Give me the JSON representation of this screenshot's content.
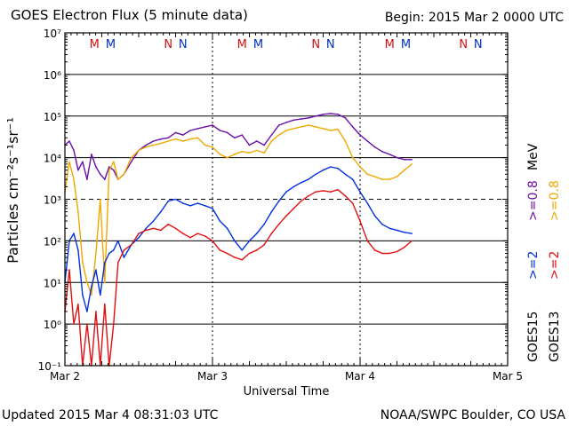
{
  "header": {
    "title": "GOES Electron Flux (5 minute data)",
    "begin": "Begin: 2015 Mar 2 0000 UTC"
  },
  "footer": {
    "updated": "Updated 2015 Mar  4 08:31:03 UTC",
    "credit": "NOAA/SWPC Boulder, CO USA"
  },
  "colors": {
    "goes13_08": "#f0a800",
    "goes15_08": "#6a0fa8",
    "goes15_2": "#0030e0",
    "goes13_2": "#e01010",
    "M": "#d01010",
    "N": "#d01010",
    "M_blue": "#0030c0"
  },
  "chart_data": {
    "type": "line",
    "xlabel": "Universal Time",
    "ylabel": "Particles cm⁻²s⁻¹sr⁻¹",
    "x_ticks": [
      "Mar 2",
      "Mar 3",
      "Mar 4",
      "Mar 5"
    ],
    "y_ticks": [
      "10⁻¹",
      "10⁰",
      "10¹",
      "10²",
      "10³",
      "10⁴",
      "10⁵",
      "10⁶",
      "10⁷"
    ],
    "y_scale": "log",
    "ylim": [
      0.1,
      10000000
    ],
    "xlim_days": [
      0,
      3
    ],
    "dashed_threshold": 1000,
    "legend": {
      "sat_left": "GOES15",
      "sat_right": "GOES13",
      "e2_left": ">=2",
      "e2_right": ">=2",
      "e08_left": ">=0.8",
      "e08_right": ">=0.8",
      "unit": "MeV"
    },
    "markers": [
      {
        "label": "M",
        "day": 0.2,
        "color": "red"
      },
      {
        "label": "M",
        "day": 0.31,
        "color": "blue"
      },
      {
        "label": "N",
        "day": 0.7,
        "color": "red"
      },
      {
        "label": "N",
        "day": 0.8,
        "color": "blue"
      },
      {
        "label": "M",
        "day": 1.2,
        "color": "red"
      },
      {
        "label": "M",
        "day": 1.31,
        "color": "blue"
      },
      {
        "label": "N",
        "day": 1.7,
        "color": "red"
      },
      {
        "label": "N",
        "day": 1.8,
        "color": "blue"
      },
      {
        "label": "M",
        "day": 2.2,
        "color": "red"
      },
      {
        "label": "M",
        "day": 2.31,
        "color": "blue"
      },
      {
        "label": "N",
        "day": 2.7,
        "color": "red"
      },
      {
        "label": "N",
        "day": 2.8,
        "color": "blue"
      }
    ],
    "series": [
      {
        "name": "GOES15 >=0.8 MeV",
        "color_key": "goes15_08",
        "x": [
          0,
          0.03,
          0.06,
          0.09,
          0.12,
          0.15,
          0.18,
          0.21,
          0.24,
          0.27,
          0.3,
          0.33,
          0.36,
          0.4,
          0.45,
          0.5,
          0.55,
          0.6,
          0.65,
          0.7,
          0.75,
          0.8,
          0.85,
          0.9,
          0.95,
          1.0,
          1.05,
          1.1,
          1.15,
          1.2,
          1.25,
          1.3,
          1.35,
          1.4,
          1.45,
          1.5,
          1.55,
          1.6,
          1.65,
          1.7,
          1.75,
          1.8,
          1.85,
          1.9,
          1.95,
          2.0,
          2.05,
          2.1,
          2.15,
          2.2,
          2.25,
          2.3,
          2.35
        ],
        "y": [
          20000,
          25000,
          15000,
          5000,
          8000,
          3000,
          12000,
          6000,
          4000,
          3000,
          6000,
          5000,
          3000,
          4000,
          8000,
          15000,
          20000,
          25000,
          28000,
          30000,
          40000,
          35000,
          45000,
          50000,
          55000,
          60000,
          45000,
          40000,
          30000,
          35000,
          20000,
          25000,
          20000,
          35000,
          60000,
          70000,
          80000,
          85000,
          90000,
          100000,
          110000,
          115000,
          110000,
          90000,
          55000,
          35000,
          25000,
          18000,
          14000,
          12000,
          10000,
          9000,
          9000
        ]
      },
      {
        "name": "GOES13 >=0.8 MeV",
        "color_key": "goes13_08",
        "x": [
          0,
          0.03,
          0.06,
          0.09,
          0.12,
          0.15,
          0.18,
          0.21,
          0.24,
          0.27,
          0.3,
          0.33,
          0.36,
          0.4,
          0.45,
          0.5,
          0.55,
          0.6,
          0.65,
          0.7,
          0.75,
          0.8,
          0.85,
          0.9,
          0.95,
          1.0,
          1.05,
          1.1,
          1.15,
          1.2,
          1.25,
          1.3,
          1.35,
          1.4,
          1.45,
          1.5,
          1.55,
          1.6,
          1.65,
          1.7,
          1.75,
          1.8,
          1.85,
          1.9,
          1.95,
          2.0,
          2.05,
          2.1,
          2.15,
          2.2,
          2.25,
          2.3,
          2.35
        ],
        "y": [
          1500,
          8000,
          3000,
          500,
          30,
          10,
          5,
          50,
          1000,
          10,
          5000,
          8000,
          3000,
          4000,
          10000,
          15000,
          18000,
          20000,
          22000,
          25000,
          28000,
          25000,
          28000,
          30000,
          20000,
          18000,
          12000,
          10000,
          12000,
          14000,
          13000,
          15000,
          13000,
          25000,
          35000,
          45000,
          50000,
          55000,
          60000,
          55000,
          50000,
          45000,
          48000,
          25000,
          10000,
          6000,
          4000,
          3500,
          3000,
          3000,
          3500,
          5000,
          7000
        ]
      },
      {
        "name": "GOES15 >=2 MeV",
        "color_key": "goes15_2",
        "x": [
          0,
          0.03,
          0.06,
          0.09,
          0.12,
          0.15,
          0.18,
          0.21,
          0.24,
          0.27,
          0.3,
          0.33,
          0.36,
          0.4,
          0.45,
          0.5,
          0.55,
          0.6,
          0.65,
          0.7,
          0.75,
          0.8,
          0.85,
          0.9,
          0.95,
          1.0,
          1.05,
          1.1,
          1.15,
          1.2,
          1.25,
          1.3,
          1.35,
          1.4,
          1.45,
          1.5,
          1.55,
          1.6,
          1.65,
          1.7,
          1.75,
          1.8,
          1.85,
          1.9,
          1.95,
          2.0,
          2.05,
          2.1,
          2.15,
          2.2,
          2.25,
          2.3,
          2.35
        ],
        "y": [
          10,
          100,
          150,
          60,
          5,
          2,
          8,
          20,
          5,
          30,
          50,
          60,
          100,
          40,
          80,
          120,
          200,
          300,
          500,
          900,
          1000,
          800,
          700,
          800,
          700,
          600,
          300,
          200,
          100,
          60,
          100,
          150,
          250,
          500,
          900,
          1500,
          2000,
          2500,
          3000,
          4000,
          5000,
          6000,
          5500,
          4000,
          3000,
          1500,
          800,
          400,
          250,
          200,
          180,
          160,
          150
        ]
      },
      {
        "name": "GOES13 >=2 MeV",
        "color_key": "goes13_2",
        "x": [
          0,
          0.03,
          0.06,
          0.09,
          0.12,
          0.15,
          0.18,
          0.21,
          0.24,
          0.27,
          0.3,
          0.33,
          0.36,
          0.4,
          0.45,
          0.5,
          0.55,
          0.6,
          0.65,
          0.7,
          0.75,
          0.8,
          0.85,
          0.9,
          0.95,
          1.0,
          1.05,
          1.1,
          1.15,
          1.2,
          1.25,
          1.3,
          1.35,
          1.4,
          1.45,
          1.5,
          1.55,
          1.6,
          1.65,
          1.7,
          1.75,
          1.8,
          1.85,
          1.9,
          1.95,
          2.0,
          2.05,
          2.1,
          2.15,
          2.2,
          2.25,
          2.3,
          2.35
        ],
        "y": [
          2,
          20,
          1,
          3,
          0.1,
          1,
          0.1,
          2,
          0.1,
          3,
          0.1,
          1,
          30,
          60,
          80,
          150,
          180,
          200,
          180,
          250,
          200,
          150,
          120,
          150,
          130,
          100,
          60,
          50,
          40,
          35,
          50,
          60,
          80,
          150,
          250,
          400,
          600,
          900,
          1200,
          1500,
          1600,
          1500,
          1700,
          1200,
          800,
          300,
          100,
          60,
          50,
          50,
          55,
          70,
          100
        ]
      }
    ]
  }
}
